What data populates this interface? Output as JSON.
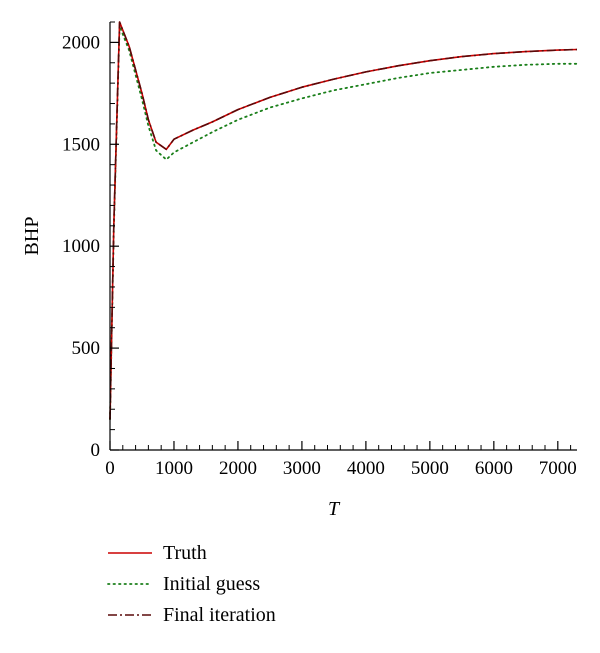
{
  "chart_data": {
    "type": "line",
    "title": "",
    "xlabel": "T",
    "ylabel": "BHP",
    "xlim": [
      0,
      7300
    ],
    "ylim": [
      0,
      2100
    ],
    "x_ticks": [
      0,
      1000,
      2000,
      3000,
      4000,
      5000,
      6000,
      7000
    ],
    "y_ticks": [
      0,
      500,
      1000,
      1500,
      2000
    ],
    "grid": false,
    "legend": "bottom",
    "series": [
      {
        "name": "Truth",
        "color": "#cc0000",
        "dash": "solid",
        "points": [
          [
            0,
            150
          ],
          [
            60,
            1100
          ],
          [
            150,
            2100
          ],
          [
            300,
            1980
          ],
          [
            500,
            1750
          ],
          [
            600,
            1620
          ],
          [
            720,
            1510
          ],
          [
            880,
            1475
          ],
          [
            1000,
            1525
          ],
          [
            1300,
            1570
          ],
          [
            1600,
            1610
          ],
          [
            2000,
            1670
          ],
          [
            2500,
            1730
          ],
          [
            3000,
            1780
          ],
          [
            3500,
            1820
          ],
          [
            4000,
            1855
          ],
          [
            4500,
            1885
          ],
          [
            5000,
            1910
          ],
          [
            5500,
            1930
          ],
          [
            6000,
            1945
          ],
          [
            6500,
            1955
          ],
          [
            7000,
            1962
          ],
          [
            7300,
            1965
          ]
        ]
      },
      {
        "name": "Initial guess",
        "color": "#1a7f1a",
        "dash": "dotted",
        "points": [
          [
            0,
            150
          ],
          [
            60,
            1080
          ],
          [
            150,
            2080
          ],
          [
            300,
            1960
          ],
          [
            500,
            1720
          ],
          [
            600,
            1590
          ],
          [
            720,
            1470
          ],
          [
            880,
            1425
          ],
          [
            1000,
            1460
          ],
          [
            1300,
            1510
          ],
          [
            1600,
            1560
          ],
          [
            2000,
            1620
          ],
          [
            2500,
            1680
          ],
          [
            3000,
            1725
          ],
          [
            3500,
            1765
          ],
          [
            4000,
            1795
          ],
          [
            4500,
            1825
          ],
          [
            5000,
            1850
          ],
          [
            5500,
            1865
          ],
          [
            6000,
            1880
          ],
          [
            6500,
            1890
          ],
          [
            7000,
            1895
          ],
          [
            7300,
            1895
          ]
        ]
      },
      {
        "name": "Final iteration",
        "color": "#5a0a0a",
        "dash": "dashdot",
        "points": [
          [
            0,
            150
          ],
          [
            60,
            1100
          ],
          [
            150,
            2100
          ],
          [
            300,
            1980
          ],
          [
            500,
            1750
          ],
          [
            600,
            1620
          ],
          [
            720,
            1510
          ],
          [
            880,
            1475
          ],
          [
            1000,
            1525
          ],
          [
            1300,
            1570
          ],
          [
            1600,
            1610
          ],
          [
            2000,
            1670
          ],
          [
            2500,
            1730
          ],
          [
            3000,
            1780
          ],
          [
            3500,
            1820
          ],
          [
            4000,
            1855
          ],
          [
            4500,
            1885
          ],
          [
            5000,
            1910
          ],
          [
            5500,
            1930
          ],
          [
            6000,
            1945
          ],
          [
            6500,
            1955
          ],
          [
            7000,
            1962
          ],
          [
            7300,
            1965
          ]
        ]
      }
    ]
  }
}
